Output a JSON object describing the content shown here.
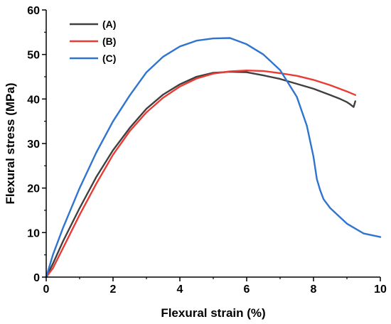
{
  "chart_data": {
    "type": "line",
    "xlabel": "Flexural strain (%)",
    "ylabel": "Flexural stress (MPa)",
    "xlim": [
      0,
      10
    ],
    "ylim": [
      0,
      60
    ],
    "xticks": [
      "0",
      "2",
      "4",
      "6",
      "8",
      "10"
    ],
    "yticks": [
      "0",
      "10",
      "20",
      "30",
      "40",
      "50",
      "60"
    ],
    "grid": false,
    "legend_position": "top-left",
    "series": [
      {
        "name": "(A)",
        "color": "#404040",
        "x": [
          0,
          0.2,
          0.5,
          1.0,
          1.5,
          2.0,
          2.5,
          3.0,
          3.5,
          4.0,
          4.5,
          5.0,
          5.5,
          6.0,
          6.5,
          7.0,
          7.5,
          8.0,
          8.5,
          8.8,
          9.0,
          9.1,
          9.2,
          9.25
        ],
        "y": [
          0,
          3,
          8,
          15.5,
          22.5,
          28.5,
          33.5,
          37.8,
          41,
          43.3,
          45,
          45.9,
          46.1,
          46,
          45.3,
          44.5,
          43.4,
          42.3,
          40.9,
          40,
          39.3,
          38.8,
          38.2,
          39.5
        ]
      },
      {
        "name": "(B)",
        "color": "#ec3b35",
        "x": [
          0,
          0.2,
          0.5,
          1.0,
          1.5,
          2.0,
          2.5,
          3.0,
          3.5,
          4.0,
          4.5,
          5.0,
          5.5,
          6.0,
          6.5,
          7.0,
          7.5,
          8.0,
          8.5,
          9.0,
          9.25
        ],
        "y": [
          0,
          2,
          6.5,
          14,
          21,
          27.5,
          32.8,
          37,
          40.3,
          42.8,
          44.6,
          45.7,
          46.2,
          46.4,
          46.3,
          45.8,
          45.2,
          44.3,
          43.1,
          41.7,
          40.9
        ]
      },
      {
        "name": "(C)",
        "color": "#2f74d0",
        "x": [
          0,
          0.2,
          0.5,
          1.0,
          1.5,
          2.0,
          2.5,
          3.0,
          3.5,
          4.0,
          4.5,
          5.0,
          5.5,
          6.0,
          6.5,
          7.0,
          7.5,
          7.8,
          8.0,
          8.1,
          8.2,
          8.3,
          8.5,
          9.0,
          9.5,
          10.0
        ],
        "y": [
          0,
          5,
          11,
          20,
          28,
          35,
          40.8,
          46,
          49.5,
          51.8,
          53.1,
          53.6,
          53.7,
          52.3,
          50,
          46.5,
          40.5,
          34,
          27,
          22,
          19.5,
          17.5,
          15.5,
          12,
          9.8,
          9
        ]
      }
    ]
  }
}
